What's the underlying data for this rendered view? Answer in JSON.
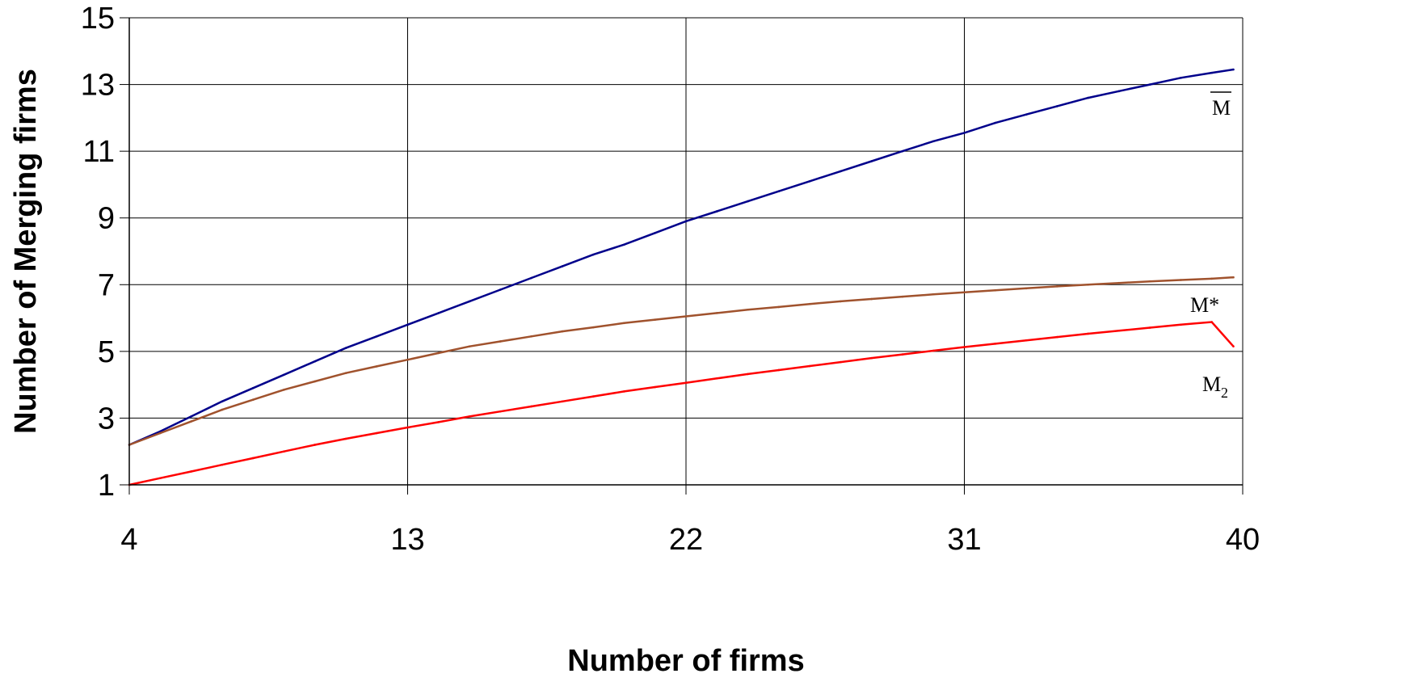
{
  "chart_data": {
    "type": "line",
    "xlabel": "Number of firms",
    "ylabel": "Number of Merging firms",
    "xlim": [
      4,
      40
    ],
    "ylim": [
      1,
      15
    ],
    "x_ticks": [
      4,
      13,
      22,
      31,
      40
    ],
    "y_ticks": [
      1,
      3,
      5,
      7,
      9,
      11,
      13,
      15
    ],
    "grid": true,
    "legend": "inline labels at right end of each line",
    "series": [
      {
        "name": "M",
        "label_main": "M",
        "label_sub": "",
        "label_overline": true,
        "color": "#00008B",
        "x": [
          4,
          5,
          6,
          7,
          8,
          9,
          10,
          11,
          12,
          13,
          14,
          15,
          16,
          17,
          18,
          19,
          20,
          21,
          22,
          23,
          24,
          25,
          26,
          27,
          28,
          29,
          30,
          31,
          32,
          33,
          34,
          35,
          36,
          37,
          38,
          39,
          39.7
        ],
        "values": [
          2.2,
          2.6,
          3.05,
          3.5,
          3.9,
          4.3,
          4.7,
          5.1,
          5.45,
          5.8,
          6.15,
          6.5,
          6.85,
          7.2,
          7.55,
          7.9,
          8.2,
          8.55,
          8.9,
          9.2,
          9.5,
          9.8,
          10.1,
          10.4,
          10.7,
          11.0,
          11.3,
          11.55,
          11.85,
          12.1,
          12.35,
          12.6,
          12.8,
          13.0,
          13.2,
          13.35,
          13.45
        ]
      },
      {
        "name": "M*",
        "label_main": "M*",
        "label_sub": "",
        "label_overline": false,
        "color": "#A0522D",
        "x": [
          4,
          5,
          6,
          7,
          8,
          9,
          10,
          11,
          12,
          13,
          14,
          15,
          16,
          17,
          18,
          19,
          20,
          21,
          22,
          23,
          24,
          25,
          26,
          27,
          28,
          29,
          30,
          31,
          32,
          33,
          34,
          35,
          36,
          37,
          38,
          39,
          39.7
        ],
        "values": [
          2.2,
          2.55,
          2.9,
          3.25,
          3.55,
          3.85,
          4.1,
          4.35,
          4.55,
          4.75,
          4.95,
          5.15,
          5.3,
          5.45,
          5.6,
          5.72,
          5.85,
          5.95,
          6.05,
          6.15,
          6.25,
          6.33,
          6.42,
          6.5,
          6.57,
          6.64,
          6.71,
          6.77,
          6.83,
          6.89,
          6.95,
          7.0,
          7.05,
          7.1,
          7.14,
          7.18,
          7.22
        ]
      },
      {
        "name": "M2",
        "label_main": "M",
        "label_sub": "2",
        "label_overline": false,
        "color": "#FF0000",
        "x": [
          4,
          5,
          6,
          7,
          8,
          9,
          10,
          11,
          12,
          13,
          14,
          15,
          16,
          17,
          18,
          19,
          20,
          21,
          22,
          23,
          24,
          25,
          26,
          27,
          28,
          29,
          30,
          31,
          32,
          33,
          34,
          35,
          36,
          37,
          38,
          39,
          39.7
        ],
        "values": [
          1.0,
          1.2,
          1.4,
          1.6,
          1.8,
          2.0,
          2.2,
          2.38,
          2.55,
          2.72,
          2.88,
          3.05,
          3.2,
          3.35,
          3.5,
          3.65,
          3.8,
          3.93,
          4.06,
          4.19,
          4.32,
          4.44,
          4.56,
          4.68,
          4.8,
          4.91,
          5.02,
          5.13,
          5.23,
          5.33,
          5.43,
          5.53,
          5.62,
          5.71,
          5.8,
          5.88,
          5.15
        ]
      }
    ]
  }
}
